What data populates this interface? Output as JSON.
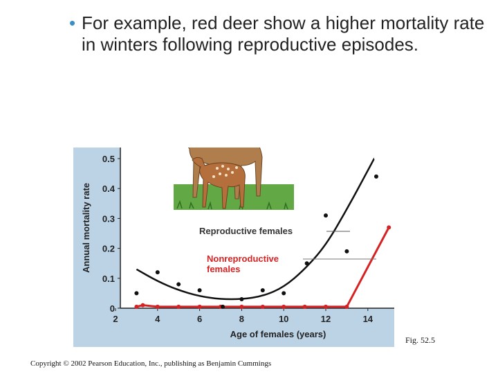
{
  "slide": {
    "bullet": "•",
    "text": "For example, red deer show a higher mortality rate in winters following reproductive episodes."
  },
  "figure_label": "Fig. 52.5",
  "copyright": "Copyright © 2002 Pearson Education, Inc., publishing as Benjamin Cummings",
  "illustration": {
    "subject": "red deer doe with fawn on grass",
    "icon": "deer-illustration"
  },
  "colors": {
    "reproductive": "#111111",
    "nonreproductive": "#d62222",
    "panel": "#bcd3e6",
    "plot_area": "#ffffff",
    "bullet": "#3b8ec2"
  },
  "chart_data": {
    "type": "scatter",
    "title": "",
    "xlabel": "Age of females (years)",
    "ylabel": "Annual mortality rate",
    "xlim": [
      2,
      15
    ],
    "ylim": [
      0,
      0.5
    ],
    "xticks": [
      "2",
      "4",
      "6",
      "8",
      "10",
      "12",
      "14"
    ],
    "yticks": [
      "0",
      "0.1",
      "0.2",
      "0.3",
      "0.4",
      "0.5"
    ],
    "series": [
      {
        "name": "Reproductive females",
        "points": [
          [
            3,
            0.05
          ],
          [
            4,
            0.12
          ],
          [
            5,
            0.08
          ],
          [
            6,
            0.06
          ],
          [
            7.1,
            0.005
          ],
          [
            8,
            0.03
          ],
          [
            9,
            0.06
          ],
          [
            10,
            0.05
          ],
          [
            11.1,
            0.15
          ],
          [
            12,
            0.31
          ],
          [
            13,
            0.19
          ],
          [
            14.4,
            0.44
          ]
        ],
        "trend": [
          [
            3,
            0.13
          ],
          [
            4,
            0.09
          ],
          [
            5,
            0.06
          ],
          [
            6,
            0.04
          ],
          [
            7,
            0.03
          ],
          [
            8,
            0.03
          ],
          [
            9,
            0.04
          ],
          [
            10,
            0.07
          ],
          [
            11,
            0.13
          ],
          [
            12,
            0.21
          ],
          [
            13,
            0.33
          ],
          [
            14,
            0.46
          ],
          [
            14.3,
            0.5
          ]
        ]
      },
      {
        "name": "Nonreproductive females",
        "points": [
          [
            3,
            0.005
          ],
          [
            3.3,
            0.01
          ],
          [
            4,
            0.005
          ],
          [
            5,
            0.005
          ],
          [
            6,
            0.005
          ],
          [
            7,
            0.005
          ],
          [
            8,
            0.005
          ],
          [
            9,
            0.005
          ],
          [
            10,
            0.005
          ],
          [
            11,
            0.005
          ],
          [
            12,
            0.005
          ],
          [
            13,
            0.005
          ],
          [
            15,
            0.27
          ]
        ],
        "line": [
          [
            3,
            0.005
          ],
          [
            3.3,
            0.01
          ],
          [
            4,
            0.005
          ],
          [
            5,
            0.005
          ],
          [
            6,
            0.005
          ],
          [
            7,
            0.005
          ],
          [
            8,
            0.005
          ],
          [
            9,
            0.005
          ],
          [
            10,
            0.005
          ],
          [
            11,
            0.005
          ],
          [
            12,
            0.005
          ],
          [
            13,
            0.005
          ],
          [
            15,
            0.27
          ]
        ]
      }
    ],
    "annotations": [
      {
        "text": "Reproductive females",
        "series": 0
      },
      {
        "text": "Nonreproductive\nfemales",
        "series": 1
      }
    ],
    "grid": false,
    "legend": "inline labels"
  }
}
